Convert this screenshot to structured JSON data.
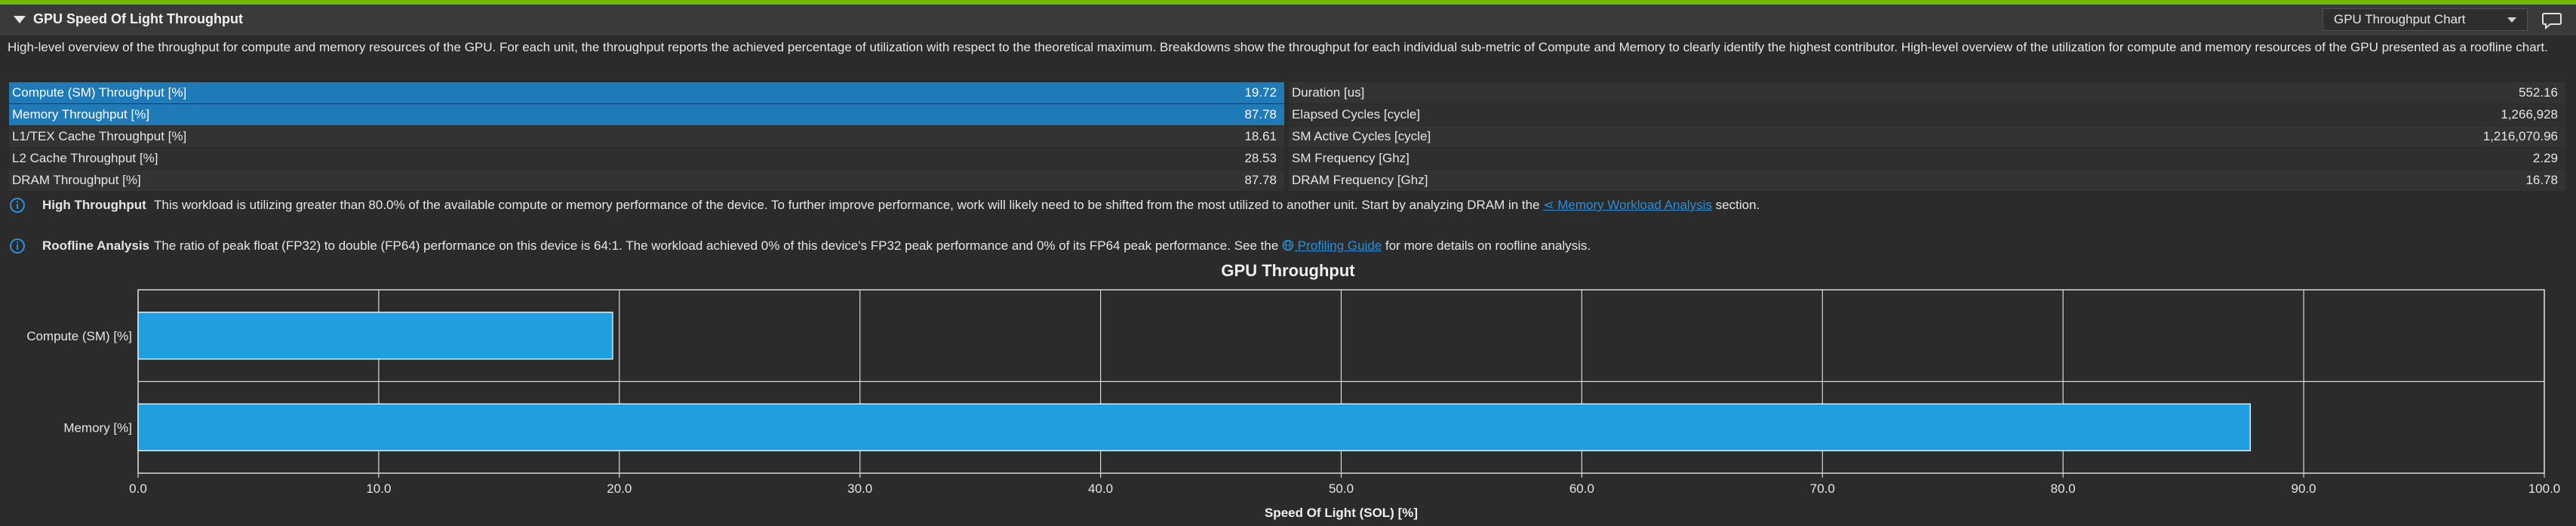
{
  "header": {
    "title": "GPU Speed Of Light Throughput",
    "dropdown_value": "GPU Throughput Chart"
  },
  "description": "High-level overview of the throughput for compute and memory resources of the GPU. For each unit, the throughput reports the achieved percentage of utilization with respect to the theoretical maximum. Breakdowns show the throughput for each individual sub-metric of Compute and Memory to clearly identify the highest contributor. High-level overview of the utilization for compute and memory resources of the GPU presented as a roofline chart.",
  "metrics_left": [
    {
      "label": "Compute (SM) Throughput [%]",
      "value": "19.72",
      "highlighted": true
    },
    {
      "label": "Memory Throughput [%]",
      "value": "87.78",
      "highlighted": true
    },
    {
      "label": "L1/TEX Cache Throughput [%]",
      "value": "18.61",
      "highlighted": false
    },
    {
      "label": "L2 Cache Throughput [%]",
      "value": "28.53",
      "highlighted": false
    },
    {
      "label": "DRAM Throughput [%]",
      "value": "87.78",
      "highlighted": false
    }
  ],
  "metrics_right": [
    {
      "label": "Duration [us]",
      "value": "552.16"
    },
    {
      "label": "Elapsed Cycles [cycle]",
      "value": "1,266,928"
    },
    {
      "label": "SM Active Cycles [cycle]",
      "value": "1,216,070.96"
    },
    {
      "label": "SM Frequency [Ghz]",
      "value": "2.29"
    },
    {
      "label": "DRAM Frequency [Ghz]",
      "value": "16.78"
    }
  ],
  "notes": {
    "high_throughput": {
      "title": "High Throughput",
      "text_before": "This workload is utilizing greater than 80.0% of the available compute or memory performance of the device. To further improve performance, work will likely need to be shifted from the most utilized to another unit. Start by analyzing DRAM in the ",
      "link": "Memory Workload Analysis",
      "text_after": " section."
    },
    "roofline": {
      "title": "Roofline Analysis",
      "text_before": "The ratio of peak float (FP32) to double (FP64) performance on this device is 64:1. The workload achieved 0% of this device's FP32 peak performance and 0% of its FP64 peak performance. See the ",
      "link": "Profiling Guide",
      "text_after": " for more details on roofline analysis."
    }
  },
  "colors": {
    "accent_green": "#76b900",
    "bar": "#1f9fe0",
    "highlight_row": "#1f7ab8",
    "link": "#2b8fd8"
  },
  "chart_data": {
    "type": "bar",
    "orientation": "horizontal",
    "title": "GPU Throughput",
    "categories": [
      "Compute (SM) [%]",
      "Memory [%]"
    ],
    "values": [
      19.72,
      87.78
    ],
    "xlabel": "Speed Of Light (SOL) [%]",
    "ylabel": "",
    "xlim": [
      0,
      100
    ],
    "xticks": [
      "0.0",
      "10.0",
      "20.0",
      "30.0",
      "40.0",
      "50.0",
      "60.0",
      "70.0",
      "80.0",
      "90.0",
      "100.0"
    ],
    "grid": true
  }
}
